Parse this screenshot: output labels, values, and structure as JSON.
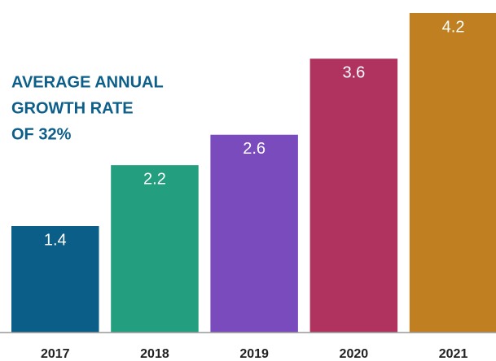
{
  "chart_data": {
    "type": "bar",
    "annotation": [
      "AVERAGE ANNUAL",
      "GROWTH RATE",
      "OF 32%"
    ],
    "categories": [
      "2017",
      "2018",
      "2019",
      "2020",
      "2021"
    ],
    "values": [
      1.4,
      2.2,
      2.6,
      3.6,
      4.2
    ],
    "colors": [
      "#0b5e87",
      "#239e7e",
      "#7a4bbd",
      "#b0335f",
      "#c07f20"
    ],
    "ylim": [
      0,
      4.2
    ]
  }
}
